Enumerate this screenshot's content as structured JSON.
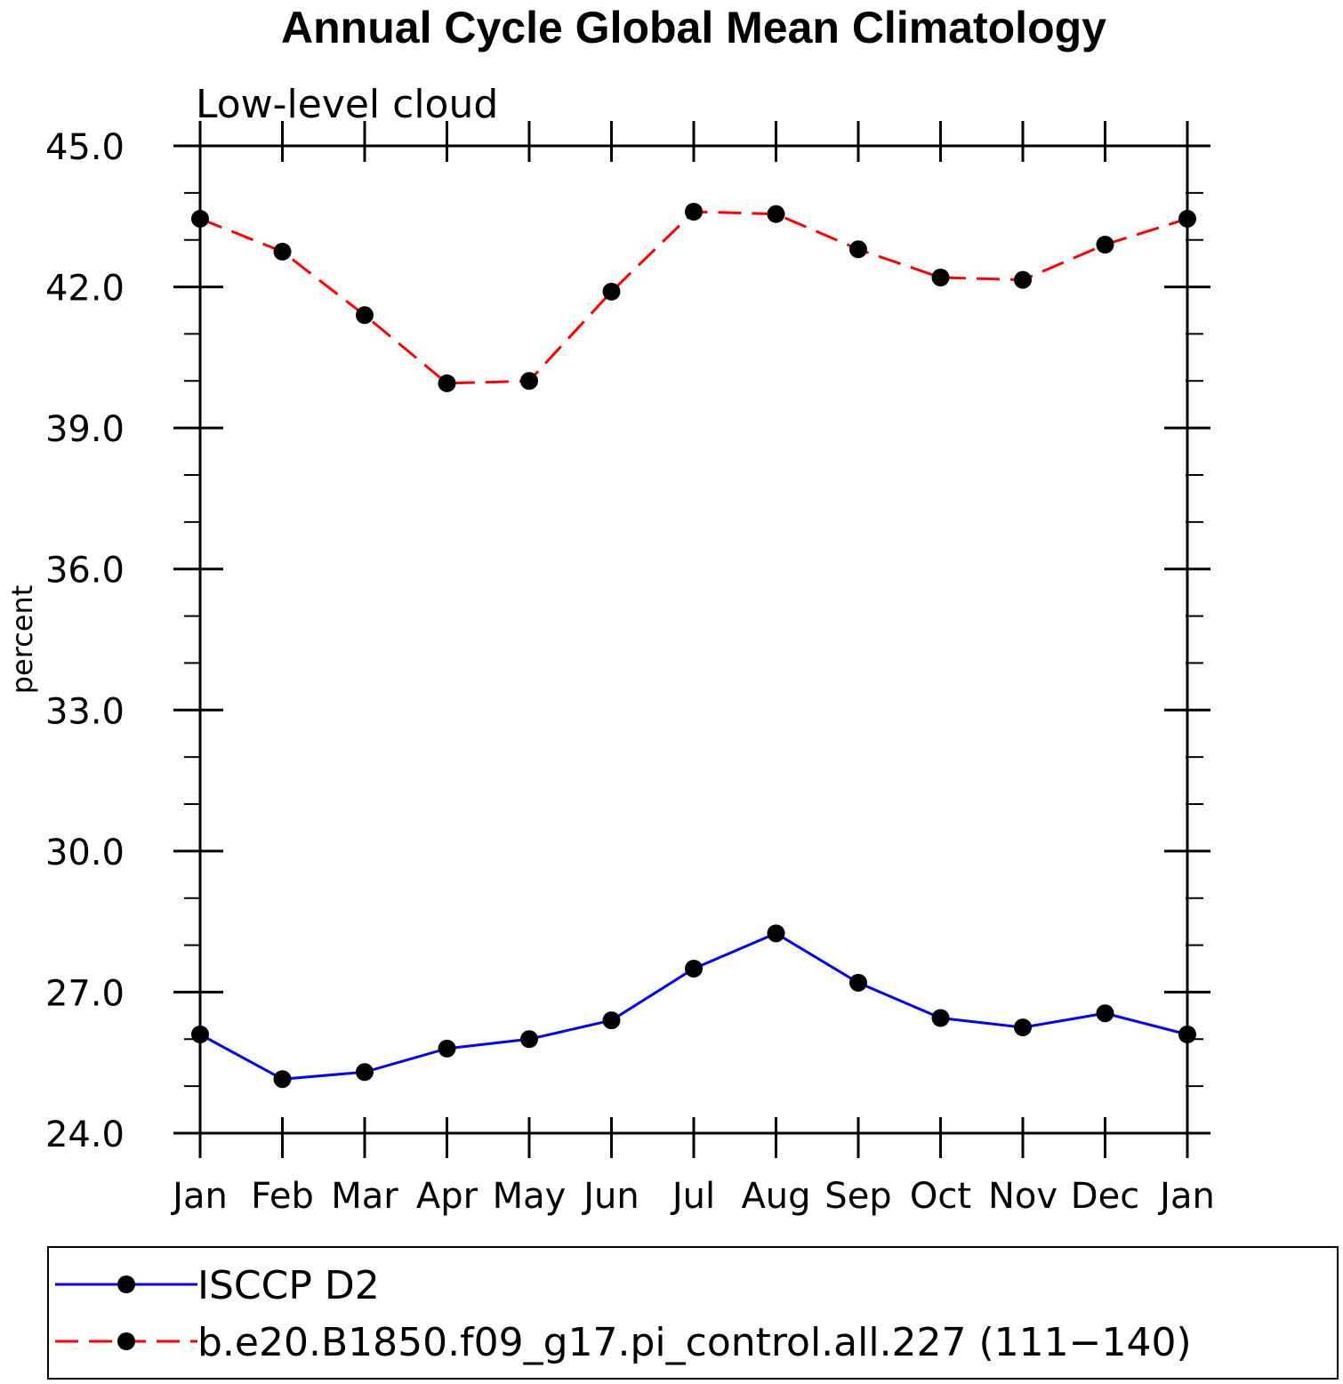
{
  "chart_data": {
    "type": "line",
    "title": "Annual Cycle Global Mean Climatology",
    "subtitle": "Low-level cloud",
    "xlabel": "",
    "ylabel": "percent",
    "categories": [
      "Jan",
      "Feb",
      "Mar",
      "Apr",
      "May",
      "Jun",
      "Jul",
      "Aug",
      "Sep",
      "Oct",
      "Nov",
      "Dec",
      "Jan"
    ],
    "ylim": [
      24.0,
      45.0
    ],
    "yticks": [
      "24.0",
      "27.0",
      "30.0",
      "33.0",
      "36.0",
      "39.0",
      "42.0",
      "45.0"
    ],
    "grid": false,
    "legend_position": "bottom",
    "series": [
      {
        "name": "ISCCP D2",
        "color": "#0000ff",
        "dash": "solid",
        "marker": "filled-circle",
        "values": [
          26.1,
          25.15,
          25.3,
          25.8,
          26.0,
          26.4,
          27.5,
          28.25,
          27.2,
          26.45,
          26.25,
          26.55,
          26.1
        ]
      },
      {
        "name": "b.e20.B1850.f09_g17.pi_control.all.227 (111-140)",
        "legend_label": "b.e20.B1850.f09_g17.pi_control.all.227 (111−140)",
        "color": "#ff0000",
        "dash": "dashed",
        "marker": "filled-circle",
        "values": [
          43.45,
          42.75,
          41.4,
          39.95,
          40.0,
          41.9,
          43.6,
          43.55,
          42.8,
          42.2,
          42.15,
          42.9,
          43.45
        ]
      }
    ]
  }
}
